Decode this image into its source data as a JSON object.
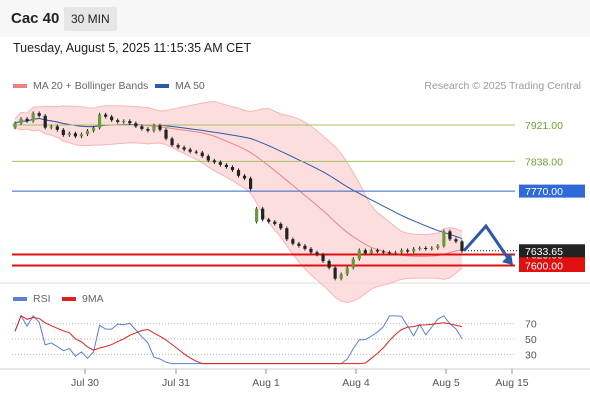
{
  "header": {
    "symbol": "Cac 40",
    "timeframe": "30 MIN",
    "datetime": "Tuesday, August 5, 2025 11:15:35 AM CET"
  },
  "legend": {
    "bollinger": {
      "label": "MA 20 + Bollinger Bands",
      "color": "#f08080"
    },
    "ma50": {
      "label": "MA 50",
      "color": "#2b5aa8"
    },
    "copyright": "Research © 2025 Trading Central"
  },
  "rsi_legend": {
    "rsi": {
      "label": "RSI",
      "color": "#5b7fd6"
    },
    "ma9": {
      "label": "9MA",
      "color": "#e02020"
    }
  },
  "levels": [
    {
      "value": "7921.00",
      "color": "#a8c060",
      "text_color": "#70a030",
      "label_bg": "none"
    },
    {
      "value": "7838.00",
      "color": "#a8c060",
      "text_color": "#70a030",
      "label_bg": "none"
    },
    {
      "value": "7770.00",
      "color": "#3366cc",
      "text_color": "#ffffff",
      "label_bg": "#2f6ad8"
    },
    {
      "value": "7625.00",
      "color": "#e01010",
      "text_color": "#ffffff",
      "label_bg": "#e01010"
    },
    {
      "value": "7600.00",
      "color": "#e01010",
      "text_color": "#ffffff",
      "label_bg": "#e01010"
    }
  ],
  "current_price_label": "7633.65",
  "chart_data": {
    "type": "candlestick",
    "x_labels": [
      "Jul 30",
      "Jul 31",
      "Aug 1",
      "Aug 4",
      "Aug 5",
      "Aug 15"
    ],
    "closes": [
      7925,
      7935,
      7930,
      7948,
      7942,
      7915,
      7918,
      7910,
      7898,
      7902,
      7895,
      7900,
      7908,
      7915,
      7945,
      7940,
      7932,
      7928,
      7930,
      7925,
      7918,
      7912,
      7908,
      7920,
      7910,
      7890,
      7875,
      7870,
      7865,
      7860,
      7858,
      7850,
      7840,
      7836,
      7830,
      7825,
      7818,
      7805,
      7799,
      7775,
      7730,
      7705,
      7700,
      7695,
      7685,
      7660,
      7650,
      7645,
      7638,
      7630,
      7625,
      7610,
      7595,
      7570,
      7580,
      7595,
      7615,
      7635,
      7628,
      7635,
      7632,
      7630,
      7628,
      7630,
      7635,
      7632,
      7638,
      7640,
      7638,
      7640,
      7645,
      7678,
      7660,
      7655,
      7633
    ],
    "opens": [
      7915,
      7925,
      7935,
      7930,
      7948,
      7942,
      7915,
      7918,
      7910,
      7898,
      7902,
      7895,
      7900,
      7908,
      7915,
      7945,
      7940,
      7932,
      7928,
      7930,
      7925,
      7918,
      7912,
      7908,
      7920,
      7910,
      7890,
      7875,
      7870,
      7865,
      7860,
      7858,
      7850,
      7840,
      7836,
      7830,
      7825,
      7818,
      7805,
      7799,
      7700,
      7730,
      7705,
      7700,
      7695,
      7685,
      7660,
      7650,
      7645,
      7638,
      7630,
      7625,
      7610,
      7595,
      7570,
      7580,
      7595,
      7615,
      7635,
      7628,
      7635,
      7632,
      7630,
      7628,
      7630,
      7635,
      7632,
      7638,
      7640,
      7638,
      7640,
      7645,
      7678,
      7660,
      7655
    ],
    "price_range": [
      7560,
      7985
    ],
    "levels": [
      7921.0,
      7838.0,
      7770.0,
      7625.0,
      7600.0
    ],
    "forecast": [
      7633.65,
      7690,
      7610
    ],
    "rsi": {
      "levels": [
        70,
        50,
        30
      ],
      "range": [
        15,
        85
      ]
    }
  }
}
